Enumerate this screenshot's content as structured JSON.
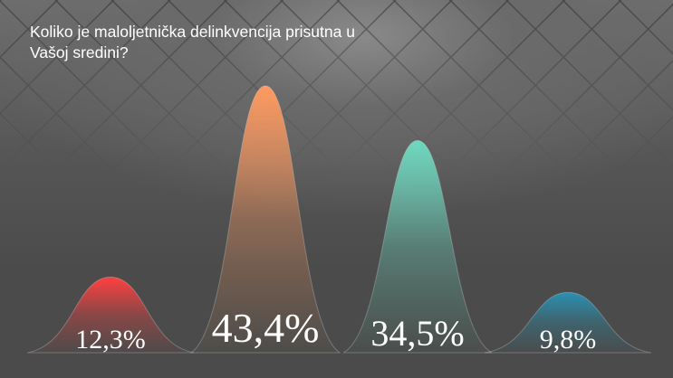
{
  "chart_data": {
    "type": "area",
    "title": "Koliko je maloljetnička delinkvencija prisutna u Vašoj sredini?",
    "values": [
      12.3,
      43.4,
      34.5,
      9.8
    ],
    "labels": [
      "12,3%",
      "43,4%",
      "34,5%",
      "9,8%"
    ],
    "colors": [
      "#ff4040",
      "#ff9a60",
      "#6fd8c0",
      "#2a90b0"
    ],
    "grid": false
  }
}
